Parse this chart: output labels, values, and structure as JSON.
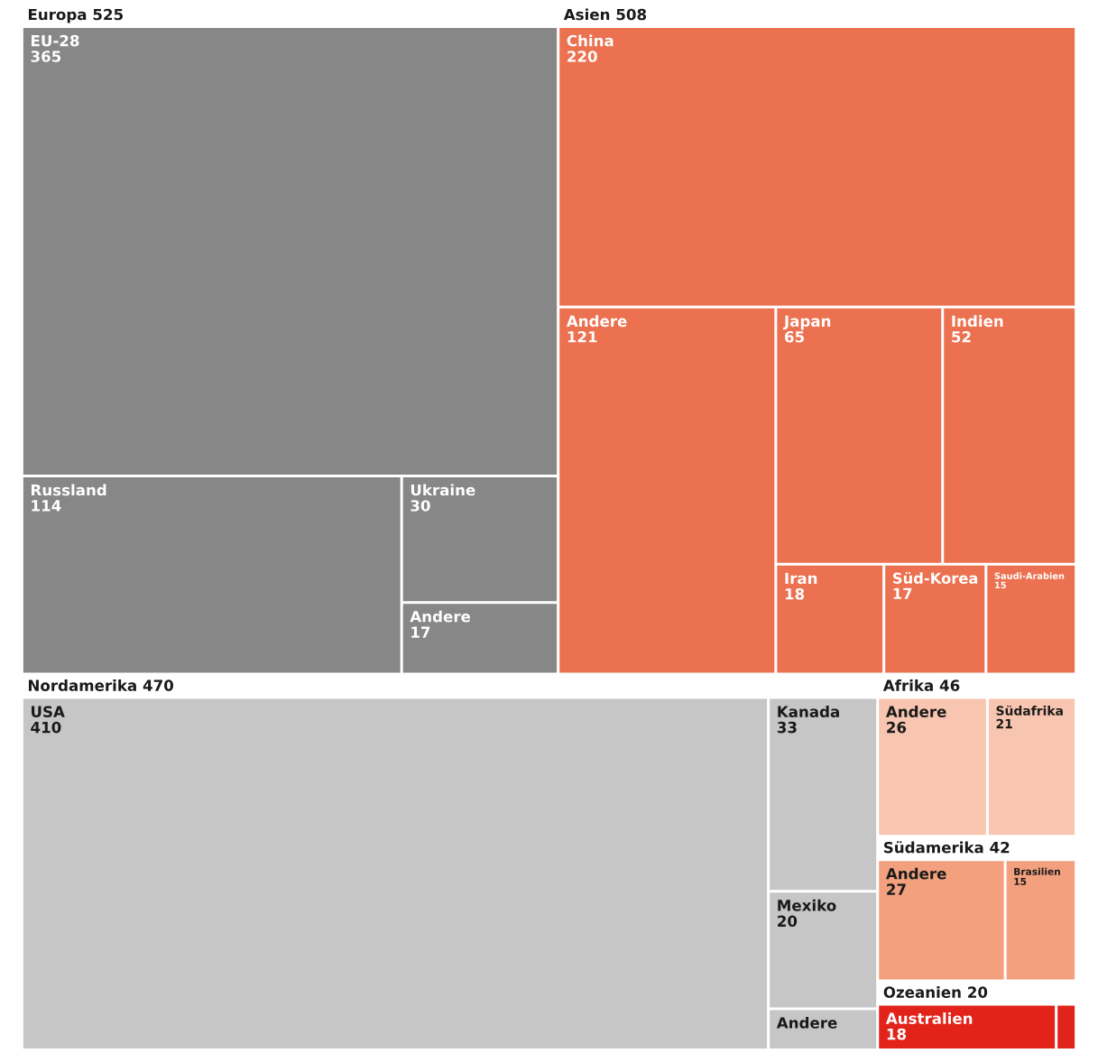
{
  "chart_data": {
    "type": "other",
    "data_labels": true,
    "categories": [
      "EU-28",
      "Russland",
      "Ukraine",
      "Andere",
      "China",
      "Andere",
      "Japan",
      "Indien",
      "Iran",
      "Süd-Korea",
      "Saudi-Arabien",
      "USA",
      "Kanada",
      "Mexiko",
      "Andere",
      "Andere",
      "Südafrika",
      "Andere",
      "Brasilien",
      "Australien",
      null
    ],
    "totals": [
      "525",
      "508",
      "470",
      "46",
      "42",
      "20"
    ],
    "series": [
      {
        "name": "Europa",
        "color": "#878787",
        "values": [
          365,
          114,
          30,
          17,
          null,
          null,
          null,
          null,
          null,
          null,
          null,
          null,
          null,
          null,
          null,
          null,
          null,
          null,
          null,
          null,
          null
        ]
      },
      {
        "name": "Asien",
        "color": "#eb7150",
        "values": [
          null,
          null,
          null,
          null,
          220,
          121,
          65,
          52,
          18,
          17,
          15,
          null,
          null,
          null,
          null,
          null,
          null,
          null,
          null,
          null,
          null
        ]
      },
      {
        "name": "Nordamerika",
        "color": "#c6c6c6",
        "values": [
          null,
          null,
          null,
          null,
          null,
          null,
          null,
          null,
          null,
          null,
          null,
          410,
          33,
          20,
          null,
          null,
          null,
          null,
          null,
          null,
          null
        ]
      },
      {
        "name": "Afrika",
        "color": "#f8c5b0",
        "values": [
          null,
          null,
          null,
          null,
          null,
          null,
          null,
          null,
          null,
          null,
          null,
          null,
          null,
          null,
          null,
          26,
          21,
          null,
          null,
          null,
          null
        ]
      },
      {
        "name": "Südamerika",
        "color": "#f2a07e",
        "values": [
          null,
          null,
          null,
          null,
          null,
          null,
          null,
          null,
          null,
          null,
          null,
          null,
          null,
          null,
          null,
          null,
          null,
          27,
          15,
          null,
          null
        ]
      },
      {
        "name": "Ozeanien",
        "color": "#e2231a",
        "values": [
          null,
          null,
          null,
          null,
          null,
          null,
          null,
          null,
          null,
          null,
          null,
          null,
          null,
          null,
          null,
          null,
          null,
          null,
          null,
          18,
          null
        ]
      }
    ]
  }
}
